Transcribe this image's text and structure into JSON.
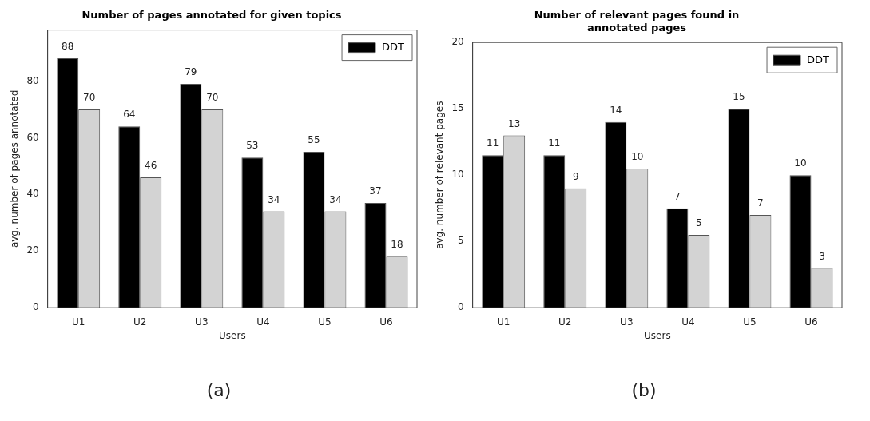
{
  "chart_data": [
    {
      "type": "bar",
      "title": "Number of pages annotated for given topics",
      "xlabel": "Users",
      "ylabel": "avg. number of pages annotated",
      "categories": [
        "U1",
        "U2",
        "U3",
        "U4",
        "U5",
        "U6"
      ],
      "series": [
        {
          "name": "DDT",
          "color": "#000000",
          "values": [
            88,
            64,
            79,
            53,
            55,
            37
          ]
        },
        {
          "color": "#d3d3d3",
          "values": [
            70,
            46,
            70,
            34,
            34,
            18
          ]
        }
      ],
      "ylim": [
        0,
        98
      ],
      "yticks": [
        0,
        20,
        40,
        60,
        80
      ],
      "grid": false,
      "legend": "top right",
      "data_labels": true,
      "annotations": [
        "(a)"
      ]
    },
    {
      "type": "bar",
      "title": "Number of relevant pages found in\nannotated pages",
      "xlabel": "Users",
      "ylabel": "avg. number of relevant pages",
      "categories": [
        "U1",
        "U2",
        "U3",
        "U4",
        "U5",
        "U6"
      ],
      "series": [
        {
          "name": "DDT",
          "color": "#000000",
          "values": [
            11.5,
            11.5,
            14,
            7.5,
            15,
            10
          ],
          "value_labels": [
            "11",
            "11",
            "14",
            "7",
            "15",
            "10"
          ]
        },
        {
          "color": "#d3d3d3",
          "values": [
            13,
            9,
            10.5,
            5.5,
            7,
            3
          ],
          "value_labels": [
            "13",
            "9",
            "10",
            "5",
            "7",
            "3"
          ]
        }
      ],
      "ylim": [
        0,
        20
      ],
      "yticks": [
        0,
        5,
        10,
        15,
        20
      ],
      "grid": false,
      "legend": "top right",
      "annotations": [
        "(b)"
      ]
    }
  ]
}
